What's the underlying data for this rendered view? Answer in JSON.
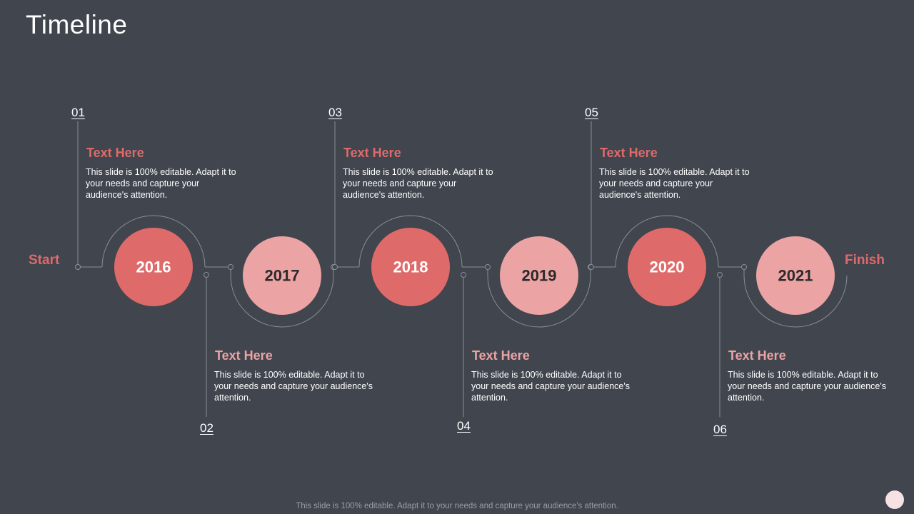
{
  "title": "Timeline",
  "start": "Start",
  "finish": "Finish",
  "milestones": [
    {
      "number": "01",
      "year": "2016",
      "heading": "Text Here",
      "text": "This slide is 100% editable. Adapt it to your needs and capture your audience's attention."
    },
    {
      "number": "02",
      "year": "2017",
      "heading": "Text Here",
      "text": "This slide is 100% editable. Adapt it to your needs and capture your audience's attention."
    },
    {
      "number": "03",
      "year": "2018",
      "heading": "Text Here",
      "text": "This slide is 100% editable. Adapt it to your needs and capture your audience's attention."
    },
    {
      "number": "04",
      "year": "2019",
      "heading": "Text Here",
      "text": "This slide is 100% editable. Adapt it to your needs and capture your audience's attention."
    },
    {
      "number": "05",
      "year": "2020",
      "heading": "Text Here",
      "text": "This slide is 100% editable. Adapt it to your needs and capture your audience's attention."
    },
    {
      "number": "06",
      "year": "2021",
      "heading": "Text Here",
      "text": "This slide is 100% editable. Adapt it to your needs and capture your audience's attention."
    }
  ],
  "footer": "This slide is 100% editable. Adapt it to your needs and capture your audience's attention."
}
